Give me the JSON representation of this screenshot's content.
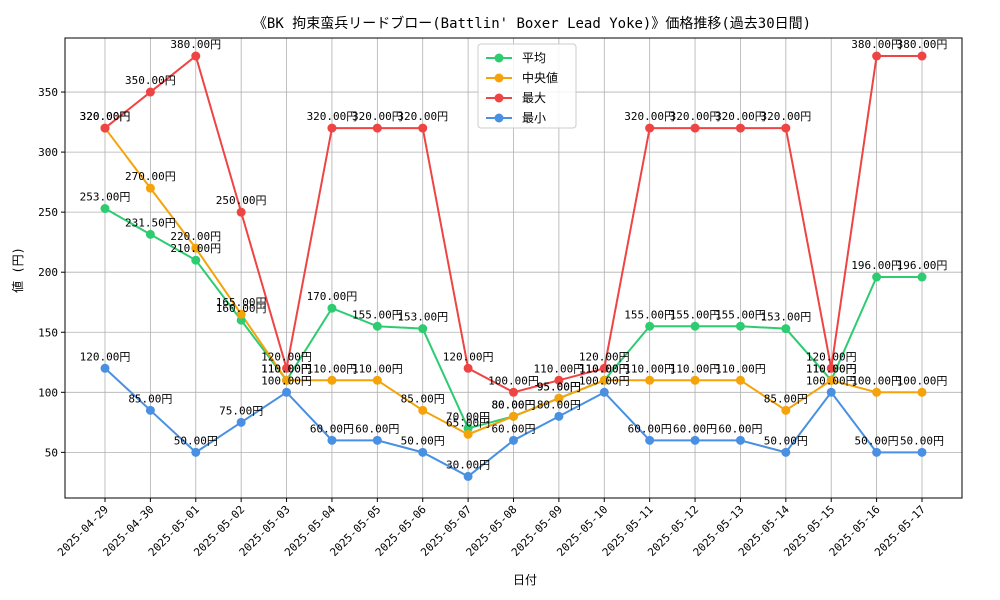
{
  "chart_data": {
    "type": "line",
    "title": "《BK 拘束蛮兵リードブロー(Battlin' Boxer Lead Yoke)》価格推移(過去30日間)",
    "xlabel": "日付",
    "ylabel": "値 (円)",
    "ylim": [
      12,
      395
    ],
    "yticks": [
      50,
      100,
      150,
      200,
      250,
      300,
      350
    ],
    "grid": true,
    "legend_position": "top-center",
    "value_suffix": "円",
    "categories": [
      "2025-04-29",
      "2025-04-30",
      "2025-05-01",
      "2025-05-02",
      "2025-05-03",
      "2025-05-04",
      "2025-05-05",
      "2025-05-06",
      "2025-05-07",
      "2025-05-08",
      "2025-05-09",
      "2025-05-10",
      "2025-05-11",
      "2025-05-12",
      "2025-05-13",
      "2025-05-14",
      "2025-05-15",
      "2025-05-16",
      "2025-05-17"
    ],
    "series": [
      {
        "name": "平均",
        "color": "#2ecc71",
        "values": [
          253,
          231.5,
          210,
          160,
          110,
          170,
          155,
          153,
          70,
          80,
          95,
          110,
          155,
          155,
          155,
          153,
          110,
          196,
          196
        ]
      },
      {
        "name": "中央値",
        "color": "#f5a30b",
        "values": [
          320,
          270,
          220,
          165,
          110,
          110,
          110,
          85,
          65,
          80,
          95,
          110,
          110,
          110,
          110,
          85,
          110,
          100,
          100
        ]
      },
      {
        "name": "最大",
        "color": "#ef4444",
        "values": [
          320,
          350,
          380,
          250,
          120,
          320,
          320,
          320,
          120,
          100,
          110,
          120,
          320,
          320,
          320,
          320,
          120,
          380,
          380
        ]
      },
      {
        "name": "最小",
        "color": "#4a90e2",
        "values": [
          120,
          85,
          50,
          75,
          100,
          60,
          60,
          50,
          30,
          60,
          80,
          100,
          60,
          60,
          60,
          50,
          100,
          50,
          50
        ]
      }
    ]
  }
}
